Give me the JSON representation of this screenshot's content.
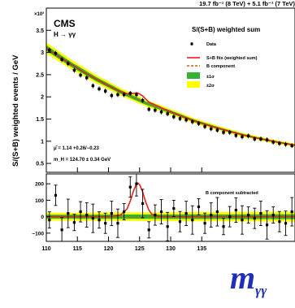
{
  "header": {
    "lumi_text": "19.7 fb⁻¹ (8 TeV) + 5.1 fb⁻¹ (7 TeV)"
  },
  "upper": {
    "cms_label": "CMS",
    "channel_label": "H → γγ",
    "exponent_label": "×10³",
    "legend_title": "S/(S+B) weighted sum",
    "legend_items": [
      "Data",
      "S+B fits (weighted sum)",
      "B component",
      "±1σ",
      "±2σ"
    ],
    "mu_text": "μ̂ = 1.14 +0.26/−0.23",
    "mass_text": "m_H = 124.70 ± 0.34 GeV",
    "ylabel": "S/(S+B) weighted events / GeV",
    "yticks": [
      "0.5",
      "1",
      "1.5",
      "2",
      "2.5",
      "3",
      "3.5"
    ]
  },
  "lower": {
    "annotation": "B component subtracted",
    "yticks": [
      "−100",
      "0",
      "100",
      "200"
    ]
  },
  "xaxis": {
    "ticks": [
      "110",
      "115",
      "120",
      "125",
      "130",
      "135"
    ],
    "label": "m",
    "label_sub": "γγ"
  },
  "colors": {
    "fit": "#e8201c",
    "background_fit": "#c86414",
    "band_1sigma": "#33b233",
    "band_2sigma": "#ffff00",
    "axis_label_blue": "#1f2fb8"
  },
  "chart_data": [
    {
      "type": "scatter",
      "title": "S/(S+B) weighted sum",
      "ylabel": "S/(S+B) weighted events / GeV",
      "y_scale_factor": 1000,
      "xlim": [
        110,
        150
      ],
      "ylim": [
        0.3,
        4.0
      ],
      "grid": false,
      "legend_position": "top-right",
      "series": [
        {
          "name": "Data",
          "x": [
            110.5,
            111.5,
            112.5,
            113.5,
            114.5,
            115.5,
            116.5,
            117.5,
            118.5,
            119.5,
            120.5,
            121.5,
            122.5,
            123.5,
            124.5,
            125.5,
            126.5,
            127.5,
            128.5,
            129.5,
            130.5,
            131.5,
            132.5,
            133.5,
            134.5,
            135.5,
            136.5,
            137.5,
            138.5,
            139.5,
            140.5,
            141.5,
            142.5,
            143.5,
            144.5,
            145.5,
            146.5,
            147.5,
            148.5,
            149.5
          ],
          "y": [
            3.05,
            2.98,
            2.84,
            2.75,
            2.6,
            2.49,
            2.43,
            2.25,
            2.18,
            2.13,
            2.03,
            2.05,
            2.05,
            2.08,
            2.05,
            1.92,
            1.72,
            1.7,
            1.66,
            1.62,
            1.55,
            1.51,
            1.48,
            1.44,
            1.4,
            1.33,
            1.28,
            1.25,
            1.2,
            1.2,
            1.13,
            1.1,
            1.12,
            1.05,
            1.05,
            1.03,
            0.98,
            0.95,
            0.93,
            0.9
          ]
        },
        {
          "name": "S+B fits (weighted sum)",
          "x": [
            110,
            112,
            114,
            116,
            118,
            120,
            122,
            123,
            124,
            124.7,
            125.5,
            126.5,
            128,
            130,
            132,
            134,
            136,
            138,
            140,
            142,
            144,
            146,
            148,
            150
          ],
          "y": [
            3.1,
            2.91,
            2.73,
            2.56,
            2.4,
            2.25,
            2.11,
            2.07,
            2.08,
            2.09,
            2.02,
            1.88,
            1.79,
            1.66,
            1.55,
            1.45,
            1.36,
            1.28,
            1.2,
            1.13,
            1.07,
            1.01,
            0.96,
            0.91
          ]
        },
        {
          "name": "B component",
          "x": [
            110,
            114,
            118,
            122,
            126,
            130,
            134,
            138,
            142,
            146,
            150
          ],
          "y": [
            3.1,
            2.73,
            2.4,
            2.11,
            1.86,
            1.66,
            1.45,
            1.28,
            1.13,
            1.01,
            0.91
          ]
        }
      ]
    },
    {
      "type": "scatter",
      "title": "B component subtracted",
      "xlabel": "mγγ",
      "xlim": [
        110,
        150
      ],
      "ylim": [
        -150,
        260
      ],
      "grid": false,
      "series": [
        {
          "name": "Data",
          "x": [
            110.5,
            111.5,
            112.5,
            113.5,
            114.5,
            115.5,
            116.5,
            117.5,
            118.5,
            119.5,
            120.5,
            121.5,
            122.5,
            123.5,
            124.5,
            125.5,
            126.5,
            127.5,
            128.5,
            129.5,
            130.5,
            131.5,
            132.5,
            133.5,
            134.5,
            135.5,
            136.5,
            137.5,
            138.5,
            139.5,
            140.5,
            141.5,
            142.5,
            143.5,
            144.5,
            145.5,
            146.5,
            147.5,
            148.5,
            149.5
          ],
          "y": [
            -20,
            130,
            -80,
            20,
            -35,
            30,
            10,
            -10,
            -20,
            -40,
            20,
            -40,
            30,
            180,
            200,
            80,
            -80,
            10,
            30,
            -60,
            50,
            -30,
            20,
            -20,
            60,
            -40,
            10,
            30,
            -60,
            0,
            40,
            -20,
            10,
            -10,
            20,
            -50,
            10,
            -30,
            -40,
            30
          ]
        },
        {
          "name": "S+B fits (weighted sum)",
          "x": [
            110,
            120,
            121,
            122,
            123,
            123.5,
            124,
            124.5,
            124.7,
            125,
            125.5,
            126,
            126.5,
            127,
            128,
            129,
            130,
            150
          ],
          "y": [
            0,
            0,
            3,
            12,
            48,
            95,
            155,
            198,
            204,
            195,
            150,
            88,
            40,
            14,
            2,
            0,
            0,
            0
          ]
        }
      ]
    }
  ]
}
